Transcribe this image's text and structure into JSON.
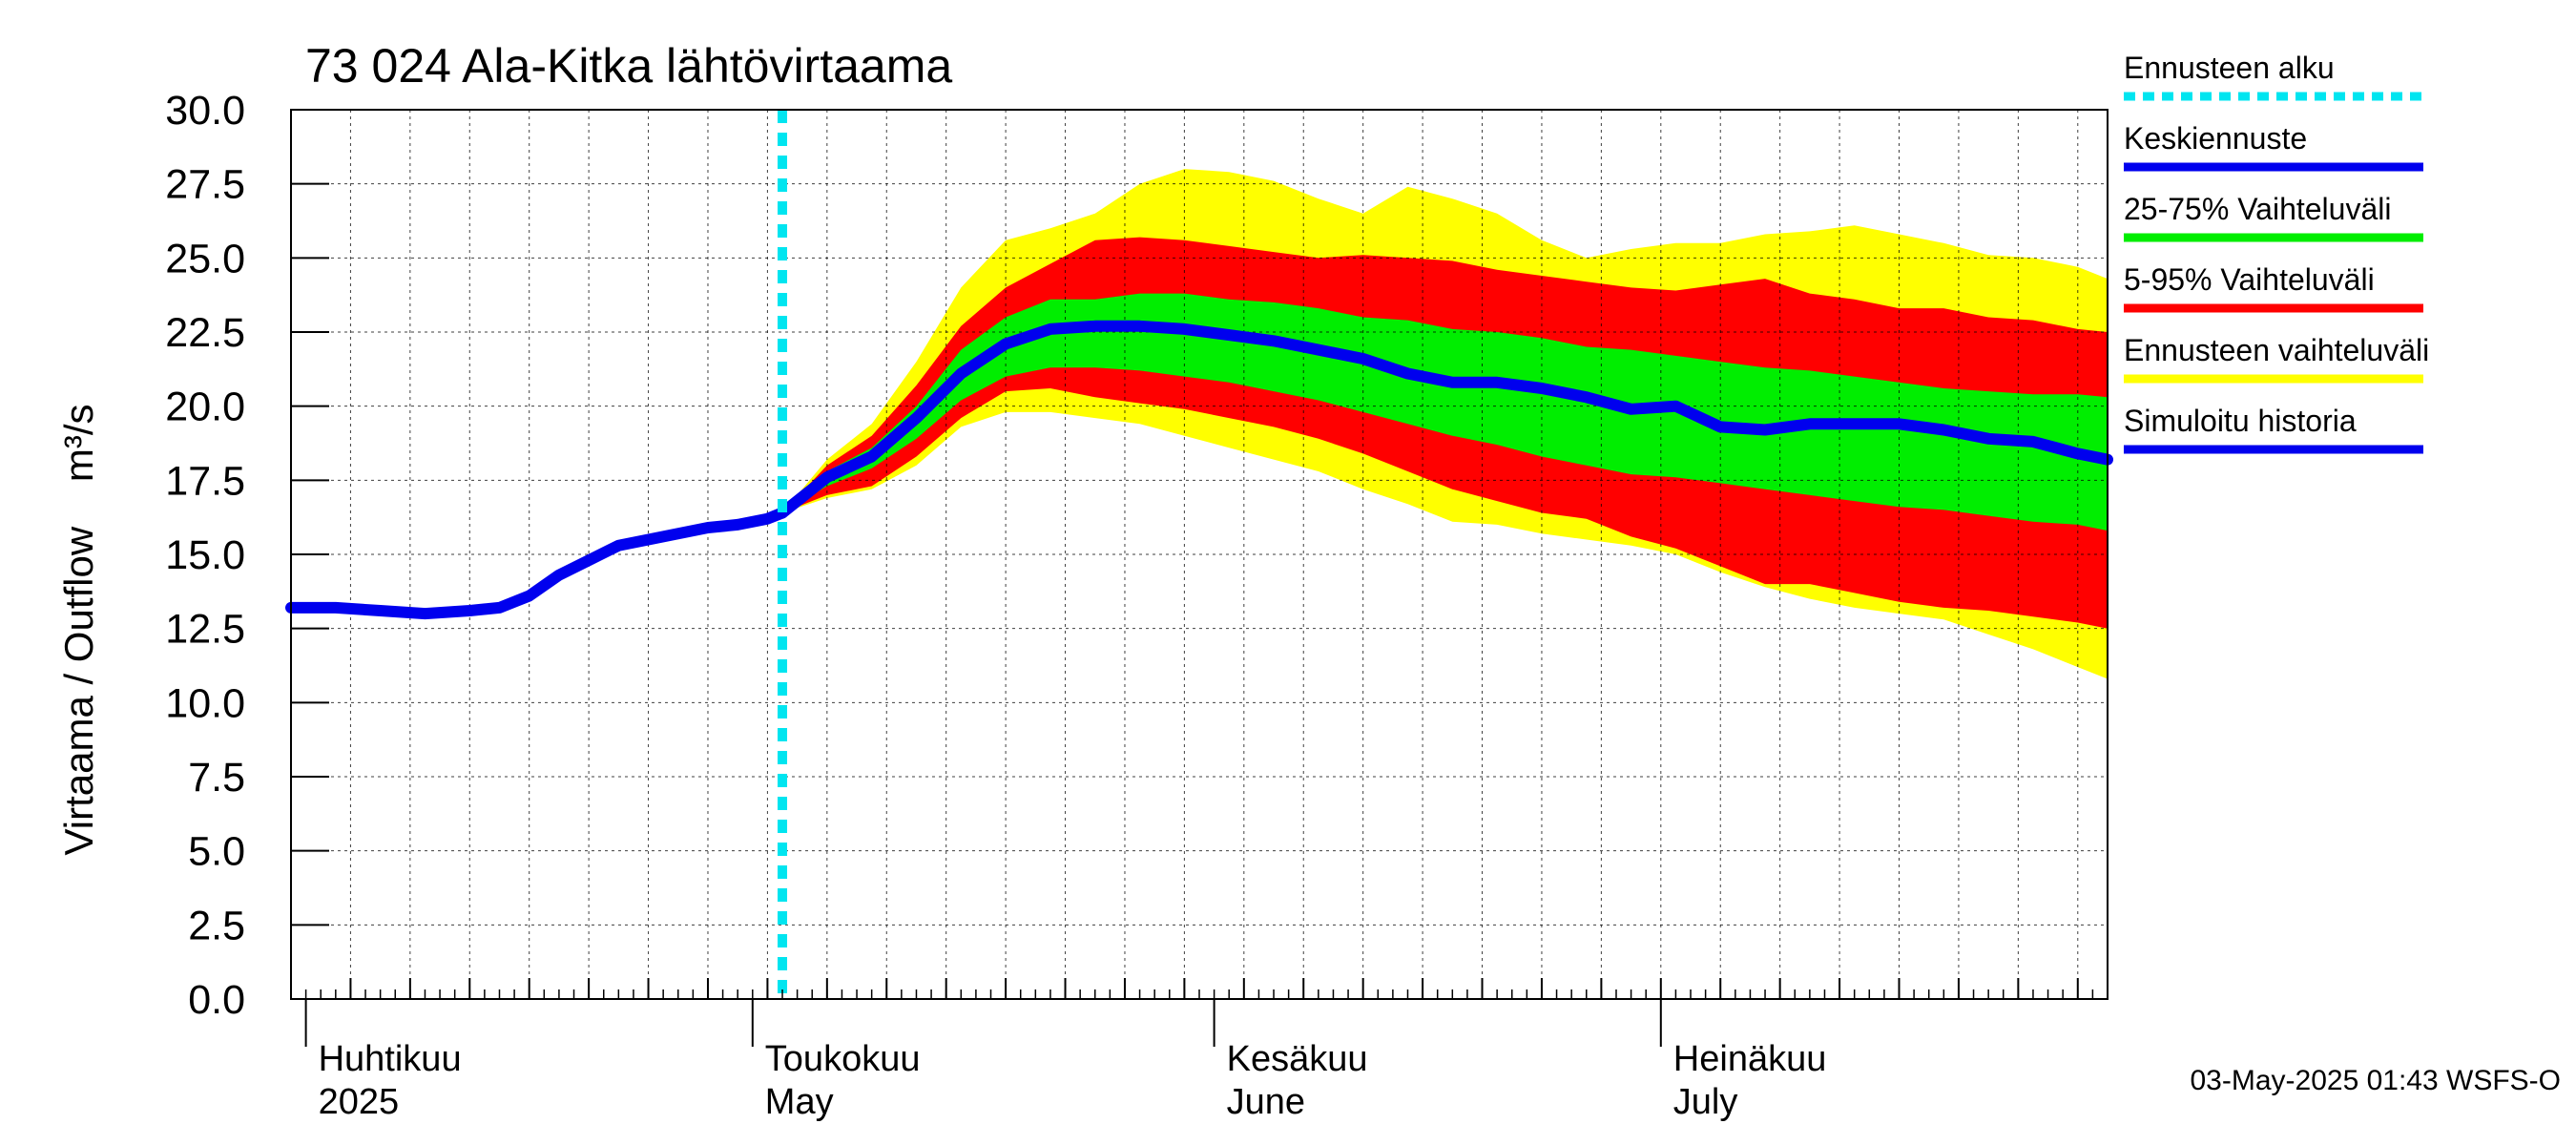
{
  "chart_data": {
    "type": "area",
    "title": "73 024 Ala-Kitka lähtövirtaama",
    "ylabel": "Virtaama / Outflow    m³/s",
    "ylim": [
      0,
      30
    ],
    "yticks": [
      "0.0",
      "2.5",
      "5.0",
      "7.5",
      "10.0",
      "12.5",
      "15.0",
      "17.5",
      "20.0",
      "22.5",
      "25.0",
      "27.5",
      "30.0"
    ],
    "xlim": [
      "2025-03-31",
      "2025-07-31"
    ],
    "month_labels": [
      {
        "date": "2025-04-01",
        "fi": "Huhtikuu",
        "en": "2025"
      },
      {
        "date": "2025-05-01",
        "fi": "Toukokuu",
        "en": "May"
      },
      {
        "date": "2025-06-01",
        "fi": "Kesäkuu",
        "en": "June"
      },
      {
        "date": "2025-07-01",
        "fi": "Heinäkuu",
        "en": "July"
      }
    ],
    "forecast_start": "2025-05-03",
    "grid": true,
    "legend_position": "right",
    "legend": [
      {
        "key": "forecast_start",
        "label": "Ennusteen alku",
        "color": "#00e5f0",
        "style": "dotted"
      },
      {
        "key": "mean",
        "label": "Keskiennuste",
        "color": "#0000ee",
        "style": "solid"
      },
      {
        "key": "p25_75",
        "label": "25-75% Vaihteluväli",
        "color": "#00ee00",
        "style": "solid"
      },
      {
        "key": "p5_95",
        "label": "5-95% Vaihteluväli",
        "color": "#ff0000",
        "style": "solid"
      },
      {
        "key": "range",
        "label": "Ennusteen vaihteluväli",
        "color": "#ffff00",
        "style": "solid"
      },
      {
        "key": "history",
        "label": "Simuloitu historia",
        "color": "#0000ee",
        "style": "solid"
      }
    ],
    "history": {
      "x": [
        "2025-03-31",
        "2025-04-03",
        "2025-04-06",
        "2025-04-09",
        "2025-04-12",
        "2025-04-14",
        "2025-04-16",
        "2025-04-18",
        "2025-04-20",
        "2025-04-22",
        "2025-04-24",
        "2025-04-26",
        "2025-04-28",
        "2025-04-30",
        "2025-05-02",
        "2025-05-03"
      ],
      "y": [
        13.2,
        13.2,
        13.1,
        13.0,
        13.1,
        13.2,
        13.6,
        14.3,
        14.8,
        15.3,
        15.5,
        15.7,
        15.9,
        16.0,
        16.2,
        16.4
      ]
    },
    "forecast": {
      "x": [
        "2025-05-03",
        "2025-05-06",
        "2025-05-09",
        "2025-05-12",
        "2025-05-15",
        "2025-05-18",
        "2025-05-21",
        "2025-05-24",
        "2025-05-27",
        "2025-05-30",
        "2025-06-02",
        "2025-06-05",
        "2025-06-08",
        "2025-06-11",
        "2025-06-14",
        "2025-06-17",
        "2025-06-20",
        "2025-06-23",
        "2025-06-26",
        "2025-06-29",
        "2025-07-02",
        "2025-07-05",
        "2025-07-08",
        "2025-07-11",
        "2025-07-14",
        "2025-07-17",
        "2025-07-20",
        "2025-07-23",
        "2025-07-26",
        "2025-07-29",
        "2025-07-31"
      ],
      "mean": [
        16.4,
        17.6,
        18.3,
        19.6,
        21.1,
        22.1,
        22.6,
        22.7,
        22.7,
        22.6,
        22.4,
        22.2,
        21.9,
        21.6,
        21.1,
        20.8,
        20.8,
        20.6,
        20.3,
        19.9,
        20.0,
        19.3,
        19.2,
        19.4,
        19.4,
        19.4,
        19.2,
        18.9,
        18.8,
        18.4,
        18.2
      ],
      "p25_upper": [
        16.4,
        17.8,
        18.6,
        20.0,
        21.9,
        23.0,
        23.6,
        23.6,
        23.8,
        23.8,
        23.6,
        23.5,
        23.3,
        23.0,
        22.9,
        22.6,
        22.5,
        22.3,
        22.0,
        21.9,
        21.7,
        21.5,
        21.3,
        21.2,
        21.0,
        20.8,
        20.6,
        20.5,
        20.4,
        20.4,
        20.3
      ],
      "p25_lower": [
        16.4,
        17.3,
        17.9,
        18.9,
        20.2,
        21.0,
        21.3,
        21.3,
        21.2,
        21.0,
        20.8,
        20.5,
        20.2,
        19.8,
        19.4,
        19.0,
        18.7,
        18.3,
        18.0,
        17.7,
        17.6,
        17.4,
        17.2,
        17.0,
        16.8,
        16.6,
        16.5,
        16.3,
        16.1,
        16.0,
        15.8
      ],
      "p5_upper": [
        16.4,
        18.0,
        19.0,
        20.7,
        22.7,
        24.0,
        24.8,
        25.6,
        25.7,
        25.6,
        25.4,
        25.2,
        25.0,
        25.1,
        25.0,
        24.9,
        24.6,
        24.4,
        24.2,
        24.0,
        23.9,
        24.1,
        24.3,
        23.8,
        23.6,
        23.3,
        23.3,
        23.0,
        22.9,
        22.6,
        22.5
      ],
      "p5_lower": [
        16.4,
        17.0,
        17.3,
        18.3,
        19.6,
        20.5,
        20.6,
        20.3,
        20.1,
        19.9,
        19.6,
        19.3,
        18.9,
        18.4,
        17.8,
        17.2,
        16.8,
        16.4,
        16.2,
        15.6,
        15.2,
        14.6,
        14.0,
        14.0,
        13.7,
        13.4,
        13.2,
        13.1,
        12.9,
        12.7,
        12.5
      ],
      "range_upper": [
        16.4,
        18.2,
        19.4,
        21.5,
        24.0,
        25.6,
        26.0,
        26.5,
        27.5,
        28.0,
        27.9,
        27.6,
        27.0,
        26.5,
        27.4,
        27.0,
        26.5,
        25.6,
        25.0,
        25.3,
        25.5,
        25.5,
        25.8,
        25.9,
        26.1,
        25.8,
        25.5,
        25.1,
        25.0,
        24.7,
        24.3
      ],
      "range_lower": [
        16.4,
        16.9,
        17.2,
        18.0,
        19.3,
        19.8,
        19.8,
        19.6,
        19.4,
        19.0,
        18.6,
        18.2,
        17.8,
        17.2,
        16.7,
        16.1,
        16.0,
        15.7,
        15.5,
        15.3,
        15.0,
        14.4,
        13.9,
        13.5,
        13.2,
        13.0,
        12.8,
        12.3,
        11.8,
        11.2,
        10.8
      ]
    }
  },
  "footer": {
    "timestamp": "03-May-2025 01:43 WSFS-O"
  }
}
